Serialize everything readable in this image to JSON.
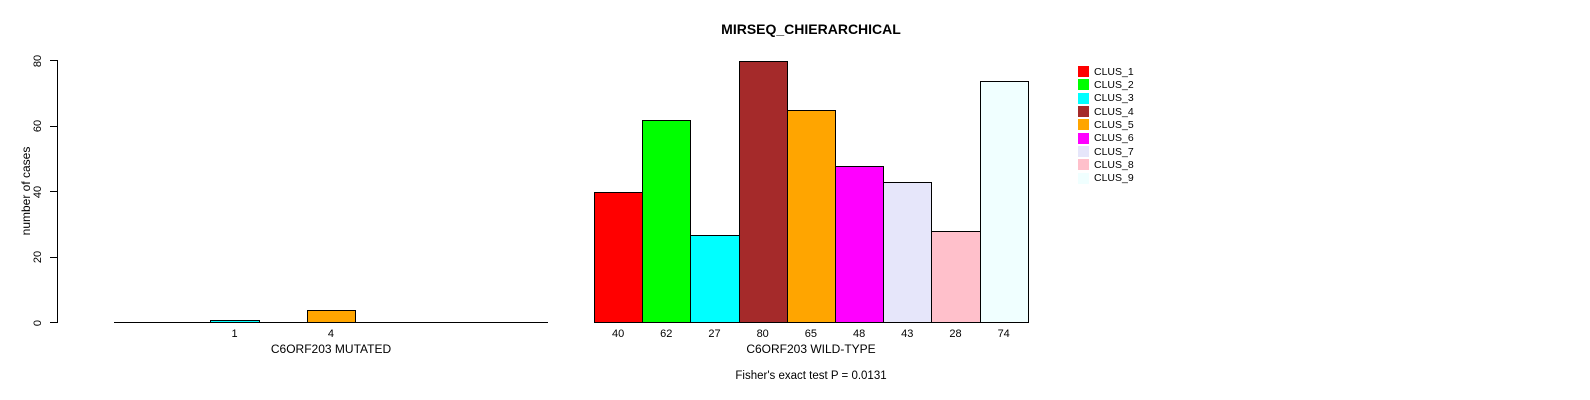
{
  "chart_data": {
    "type": "bar",
    "title": "MIRSEQ_CHIERARCHICAL",
    "ylabel": "number of cases",
    "ylim": [
      0,
      80
    ],
    "yticks": [
      0,
      20,
      40,
      60,
      80
    ],
    "grid": false,
    "background_color": "#ffffff",
    "axis_color": "#000000",
    "cluster_colors": [
      "#FF0000",
      "#00FF00",
      "#00FFFF",
      "#A52A2A",
      "#FFA500",
      "#FF00FF",
      "#E6E6FA",
      "#FFC0CB",
      "#F0FFFF"
    ],
    "categories": [
      "CLUS_1",
      "CLUS_2",
      "CLUS_3",
      "CLUS_4",
      "CLUS_5",
      "CLUS_6",
      "CLUS_7",
      "CLUS_8",
      "CLUS_9"
    ],
    "panels": [
      {
        "xlabel": "C6ORF203 MUTATED",
        "values": [
          0,
          0,
          1,
          0,
          4,
          0,
          0,
          0,
          0
        ],
        "bar_value_labels": [
          "",
          "",
          "1",
          "",
          "4",
          "",
          "",
          "",
          ""
        ]
      },
      {
        "xlabel": "C6ORF203 WILD-TYPE",
        "values": [
          40,
          62,
          27,
          80,
          65,
          48,
          43,
          28,
          74
        ],
        "bar_value_labels": [
          "40",
          "62",
          "27",
          "80",
          "65",
          "48",
          "43",
          "28",
          "74"
        ]
      }
    ],
    "legend": {
      "position": "right",
      "entries": [
        {
          "label": "CLUS_1",
          "color": "#FF0000"
        },
        {
          "label": "CLUS_2",
          "color": "#00FF00"
        },
        {
          "label": "CLUS_3",
          "color": "#00FFFF"
        },
        {
          "label": "CLUS_4",
          "color": "#A52A2A"
        },
        {
          "label": "CLUS_5",
          "color": "#FFA500"
        },
        {
          "label": "CLUS_6",
          "color": "#FF00FF"
        },
        {
          "label": "CLUS_7",
          "color": "#E6E6FA"
        },
        {
          "label": "CLUS_8",
          "color": "#FFC0CB"
        },
        {
          "label": "CLUS_9",
          "color": "#F0FFFF"
        }
      ]
    },
    "annotation": "Fisher's exact test P = 0.0131"
  }
}
